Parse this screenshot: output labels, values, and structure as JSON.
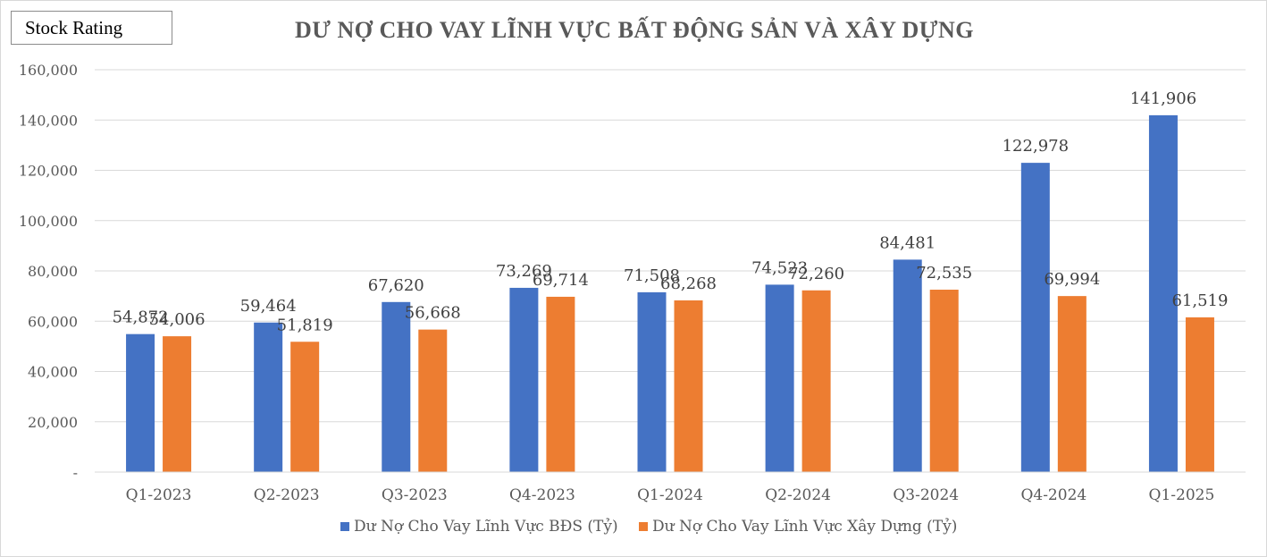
{
  "badge": {
    "label": "Stock Rating"
  },
  "chart_data": {
    "type": "bar",
    "title": "DƯ NỢ CHO VAY LĨNH VỰC BẤT ĐỘNG SẢN VÀ XÂY DỰNG",
    "categories": [
      "Q1-2023",
      "Q2-2023",
      "Q3-2023",
      "Q4-2023",
      "Q1-2024",
      "Q2-2024",
      "Q3-2024",
      "Q4-2024",
      "Q1-2025"
    ],
    "series": [
      {
        "name": "Dư Nợ Cho Vay Lĩnh Vực BĐS (Tỷ)",
        "color": "#4472c4",
        "values": [
          54872,
          59464,
          67620,
          73269,
          71508,
          74523,
          84481,
          122978,
          141906
        ],
        "labels": [
          "54,872",
          "59,464",
          "67,620",
          "73,269",
          "71,508",
          "74,523",
          "84,481",
          "122,978",
          "141,906"
        ]
      },
      {
        "name": "Dư Nợ Cho Vay Lĩnh Vực Xây Dựng (Tỷ)",
        "color": "#ed7d31",
        "values": [
          54006,
          51819,
          56668,
          69714,
          68268,
          72260,
          72535,
          69994,
          61519
        ],
        "labels": [
          "54,006",
          "51,819",
          "56,668",
          "69,714",
          "68,268",
          "72,260",
          "72,535",
          "69,994",
          "61,519"
        ]
      }
    ],
    "ylim": [
      0,
      160000
    ],
    "yticks": [
      0,
      20000,
      40000,
      60000,
      80000,
      100000,
      120000,
      140000,
      160000
    ],
    "ytick_labels": [
      "-",
      "20,000",
      "40,000",
      "60,000",
      "80,000",
      "100,000",
      "120,000",
      "140,000",
      "160,000"
    ],
    "grid": true,
    "legend_position": "bottom"
  }
}
